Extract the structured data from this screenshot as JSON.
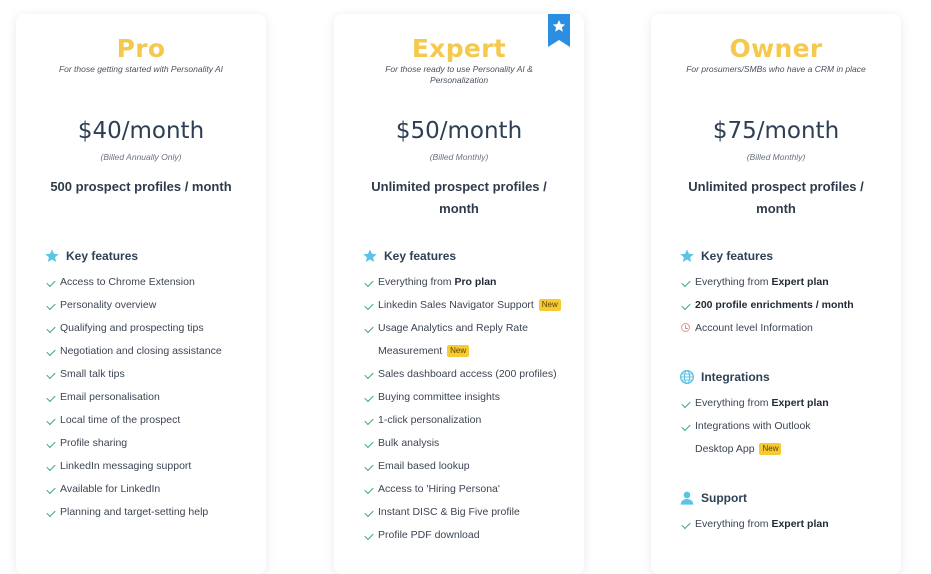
{
  "plans": {
    "pro": {
      "title": "Pro",
      "subtitle": "For those getting started with Personality AI",
      "price": "$40/month",
      "billing": "(Billed Annually Only)",
      "profiles": "500 prospect profiles / month",
      "key_features_heading": "Key features",
      "features": [
        "Access to Chrome Extension",
        "Personality overview",
        "Qualifying and prospecting tips",
        "Negotiation and closing assistance",
        "Small talk tips",
        "Email personalisation",
        "Local time of the prospect",
        "Profile sharing",
        "LinkedIn messaging support",
        "Available for LinkedIn",
        "Planning and target-setting help"
      ]
    },
    "expert": {
      "title": "Expert",
      "subtitle": "For those ready to use Personality AI & Personalization",
      "price": "$50/month",
      "billing": "(Billed Monthly)",
      "profiles": "Unlimited prospect profiles / month",
      "key_features_heading": "Key features",
      "feature_1_prefix": "Everything from ",
      "feature_1_bold": "Pro plan",
      "feature_2": "Linkedin Sales Navigator Support",
      "feature_3": "Usage Analytics and Reply Rate Measurement",
      "new_badge": "New",
      "features_rest": [
        "Sales dashboard access (200 profiles)",
        "Buying committee insights",
        "1-click personalization",
        "Bulk analysis",
        "Email based lookup",
        "Access to 'Hiring Persona'",
        "Instant DISC & Big Five profile",
        "Profile PDF download"
      ],
      "ribbon_icon": "star-icon"
    },
    "owner": {
      "title": "Owner",
      "subtitle": "For prosumers/SMBs who have a CRM in place",
      "price": "$75/month",
      "billing": "(Billed Monthly)",
      "profiles": "Unlimited prospect profiles / month",
      "key_features_heading": "Key features",
      "kf_1_prefix": "Everything from ",
      "kf_1_bold": "Expert plan",
      "kf_2": "200 profile enrichments / month",
      "kf_3": "Account level Information",
      "integrations_heading": "Integrations",
      "int_1_prefix": "Everything from ",
      "int_1_bold": "Expert plan",
      "int_2": "Integrations with Outlook Desktop App",
      "new_badge": "New",
      "support_heading": "Support",
      "sup_1_prefix": "Everything from ",
      "sup_1_bold": "Expert plan"
    }
  },
  "colors": {
    "title_yellow": "#f4c94e",
    "icon_blue": "#5bc4e6",
    "check_green": "#3aa97a",
    "badge_yellow": "#f7c933",
    "ribbon_blue": "#2b8ee0"
  }
}
